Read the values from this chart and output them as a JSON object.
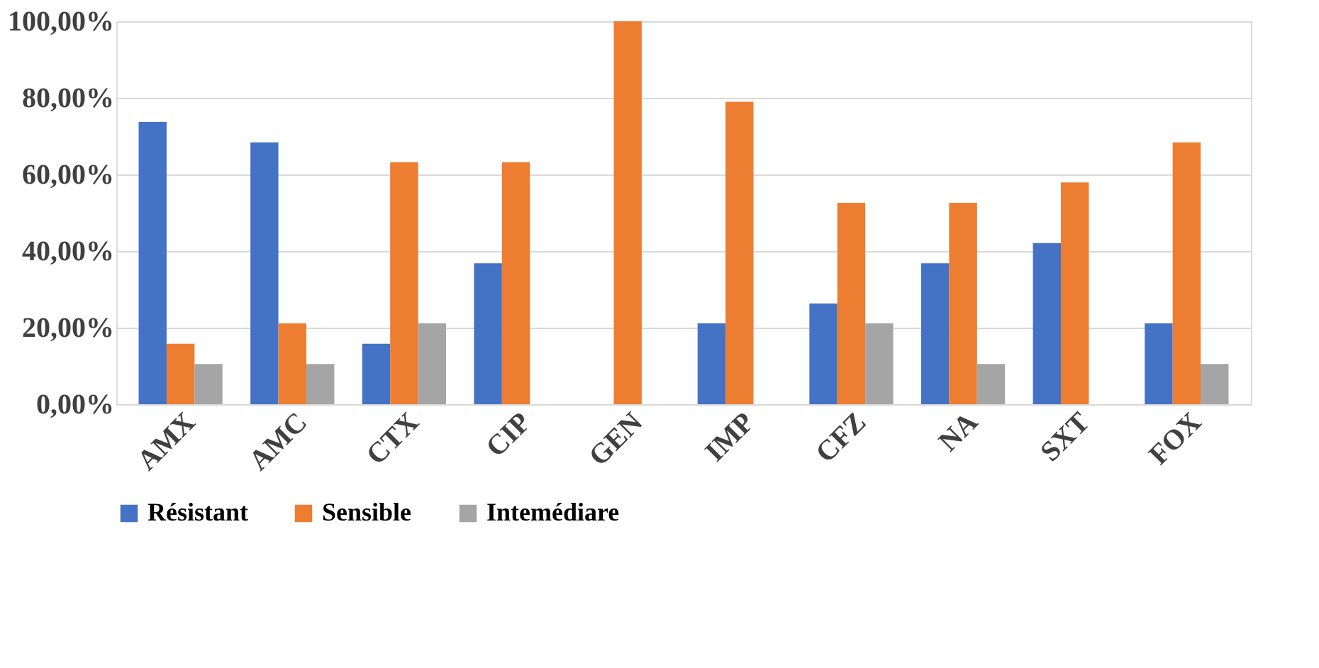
{
  "chart_data": {
    "type": "bar",
    "categories": [
      "AMX",
      "AMC",
      "CTX",
      "CIP",
      "GEN",
      "IMP",
      "CFZ",
      "NA",
      "SXT",
      "FOX"
    ],
    "series": [
      {
        "name": "Résistant",
        "color": "#4472c4",
        "values": [
          73.7,
          68.4,
          15.8,
          36.8,
          0,
          21.1,
          26.3,
          36.8,
          42.1,
          21.1
        ]
      },
      {
        "name": "Sensible",
        "color": "#ed7d31",
        "values": [
          15.8,
          21.1,
          63.2,
          63.2,
          100,
          79.0,
          52.6,
          52.6,
          57.9,
          68.4
        ]
      },
      {
        "name": "Intemédiare",
        "color": "#a5a5a5",
        "values": [
          10.5,
          10.5,
          21.1,
          0,
          0,
          0,
          21.1,
          10.5,
          0,
          10.5
        ]
      }
    ],
    "ylim": [
      0,
      100
    ],
    "yticks": [
      {
        "value": 0,
        "label": "0,00%"
      },
      {
        "value": 20,
        "label": "20,00%"
      },
      {
        "value": 40,
        "label": "40,00%"
      },
      {
        "value": 60,
        "label": "60,00%"
      },
      {
        "value": 80,
        "label": "80,00%"
      },
      {
        "value": 100,
        "label": "100,00%"
      }
    ],
    "grid": "y",
    "legend": "bottom"
  }
}
